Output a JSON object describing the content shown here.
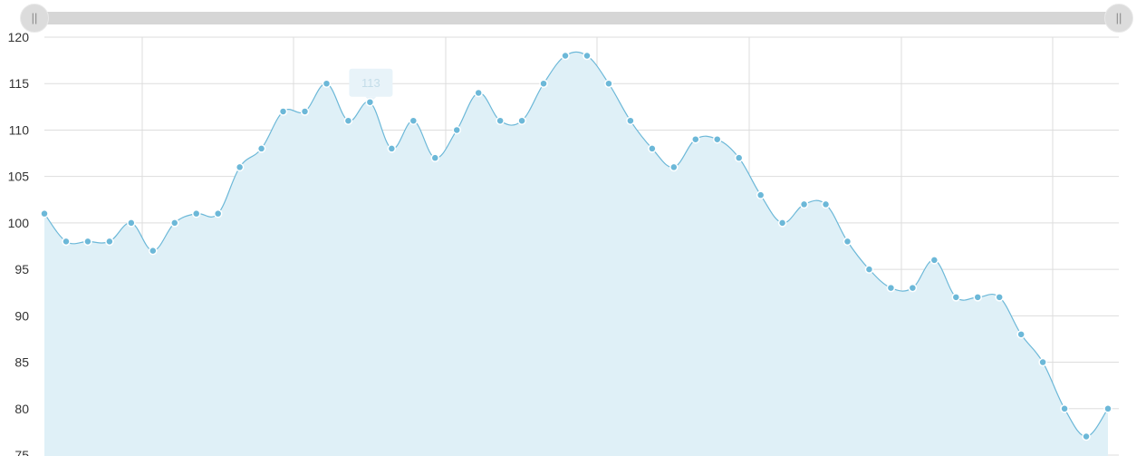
{
  "chart_data": {
    "type": "area",
    "x": [
      0,
      1,
      2,
      3,
      4,
      5,
      6,
      7,
      8,
      9,
      10,
      11,
      12,
      13,
      14,
      15,
      16,
      17,
      18,
      19,
      20,
      21,
      22,
      23,
      24,
      25,
      26,
      27,
      28,
      29,
      30,
      31,
      32,
      33,
      34,
      35,
      36,
      37,
      38,
      39,
      40,
      41,
      42,
      43,
      44,
      45,
      46,
      47,
      48,
      49
    ],
    "values": [
      101,
      98,
      98,
      98,
      100,
      97,
      100,
      101,
      101,
      106,
      108,
      112,
      112,
      115,
      111,
      113,
      108,
      111,
      107,
      110,
      114,
      111,
      111,
      115,
      118,
      118,
      115,
      111,
      108,
      106,
      109,
      109,
      107,
      103,
      100,
      102,
      102,
      98,
      95,
      93,
      93,
      96,
      92,
      92,
      92,
      88,
      85,
      80,
      77,
      80
    ],
    "ylim": [
      75,
      120
    ],
    "y_ticks": [
      "75",
      "80",
      "85",
      "90",
      "95",
      "100",
      "105",
      "110",
      "115",
      "120"
    ],
    "grid": true,
    "colors": {
      "line": "#6cb8d8",
      "fill": "#dff0f7",
      "point": "#6cb8d8",
      "grid": "#dddddd",
      "tooltip": "#e8f3f9"
    },
    "tooltip": {
      "index": 15,
      "text": "113"
    }
  },
  "scrollbar": {
    "left_handle": "||",
    "right_handle": "||"
  }
}
